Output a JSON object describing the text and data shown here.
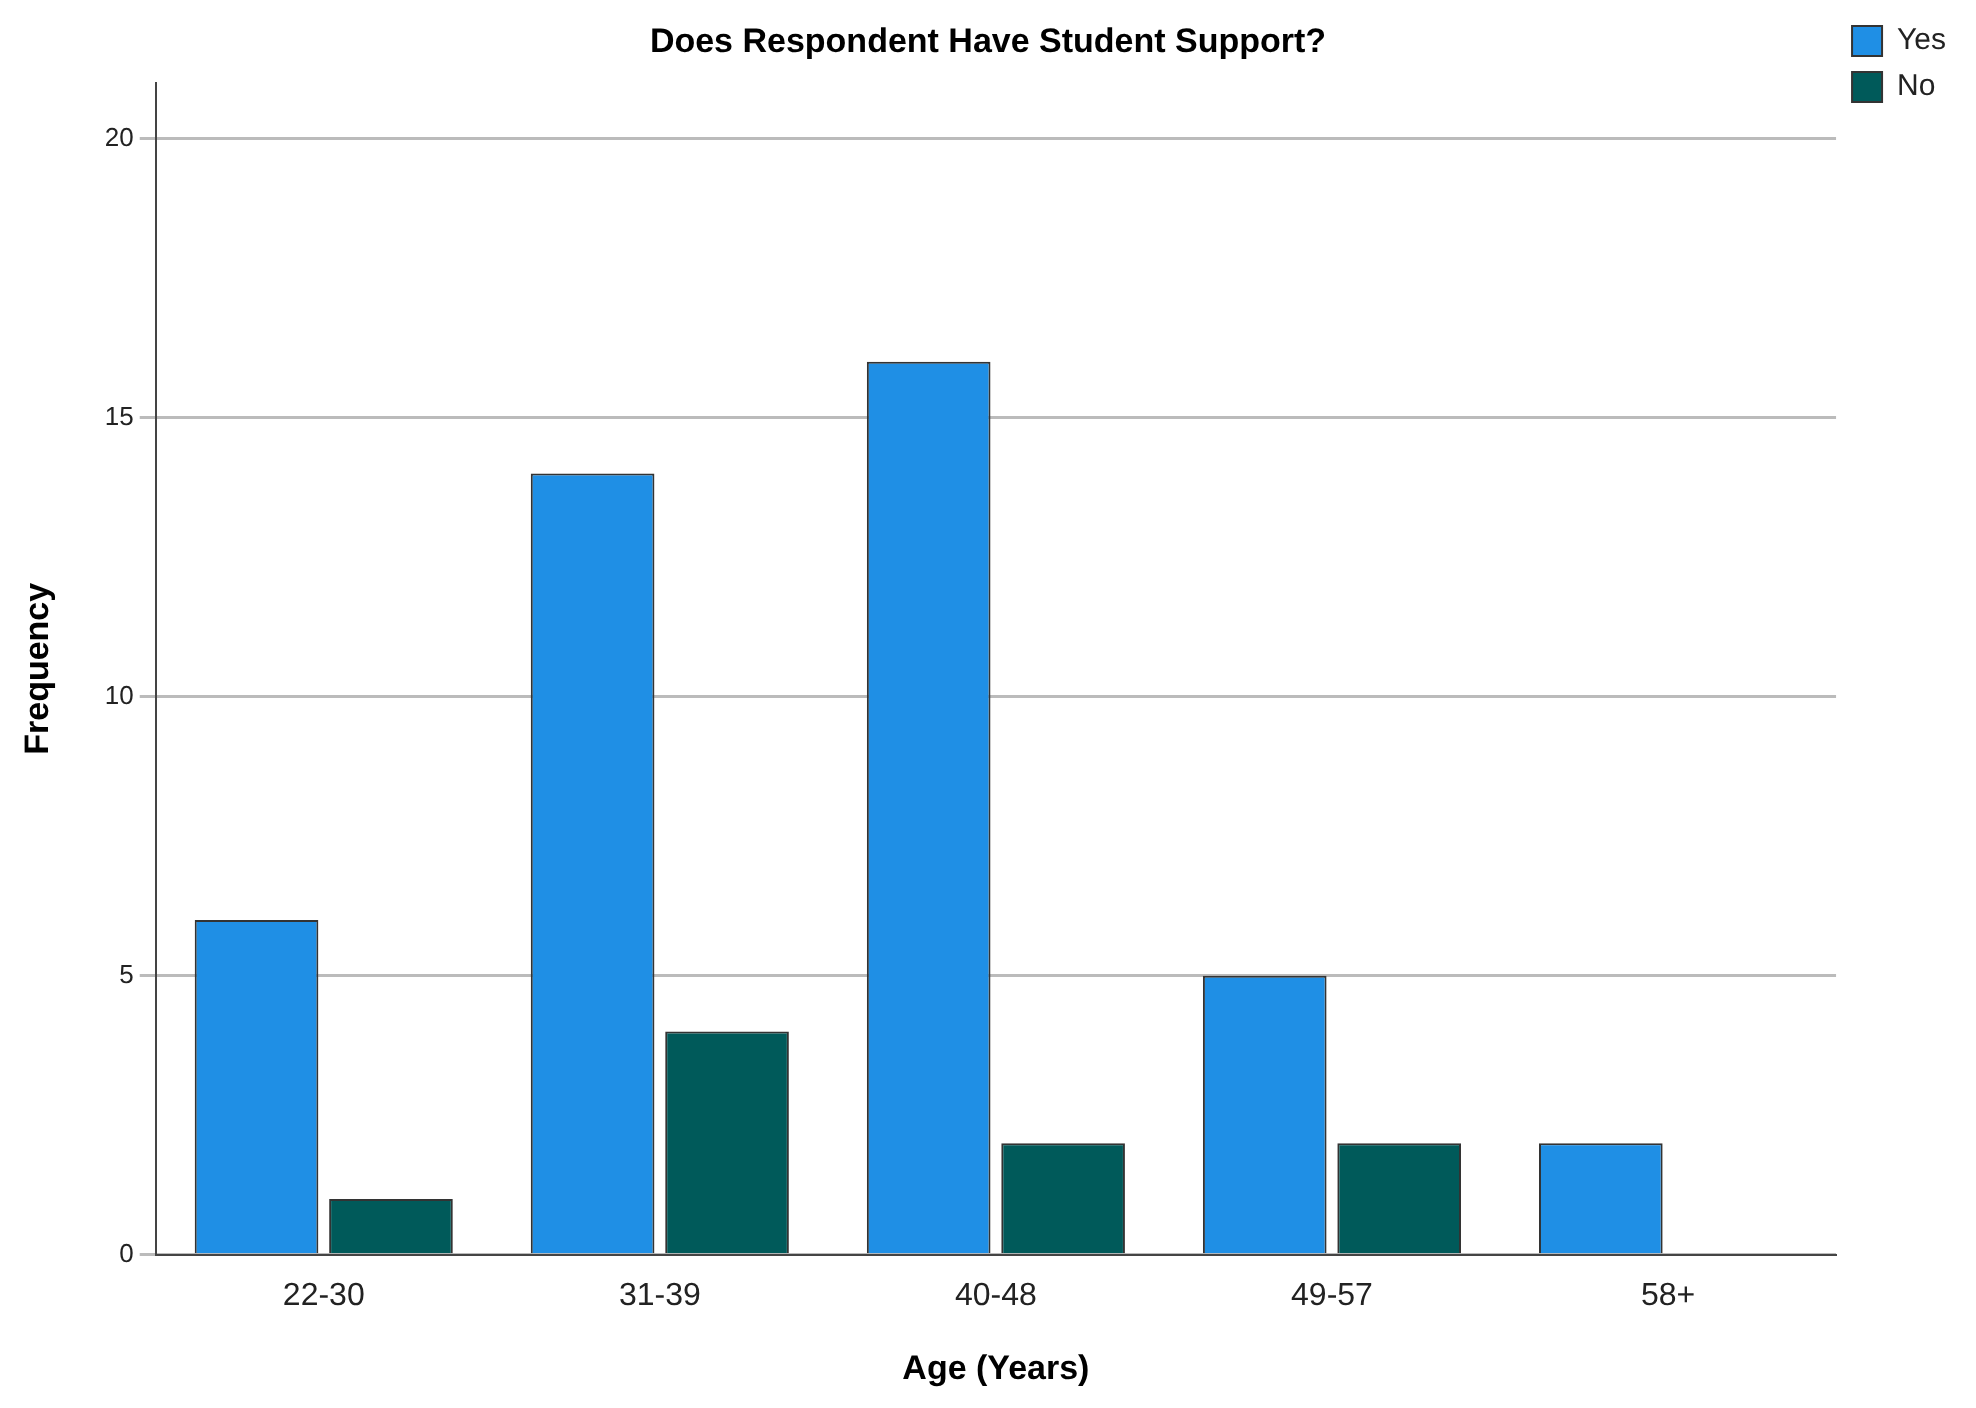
{
  "chart_data": {
    "type": "bar",
    "title": "Does Respondent Have Student Support?",
    "xlabel": "Age (Years)",
    "ylabel": "Frequency",
    "categories": [
      "22-30",
      "31-39",
      "40-48",
      "49-57",
      "58+"
    ],
    "series": [
      {
        "name": "Yes",
        "color": "#1f8fe5",
        "values": [
          6,
          14,
          16,
          5,
          2
        ]
      },
      {
        "name": "No",
        "color": "#005a5a",
        "values": [
          1,
          4,
          2,
          2,
          0
        ]
      }
    ],
    "ylim": [
      0,
      21
    ],
    "yticks": [
      0,
      5,
      10,
      15,
      20
    ],
    "grid": "y",
    "legend": "top right"
  }
}
